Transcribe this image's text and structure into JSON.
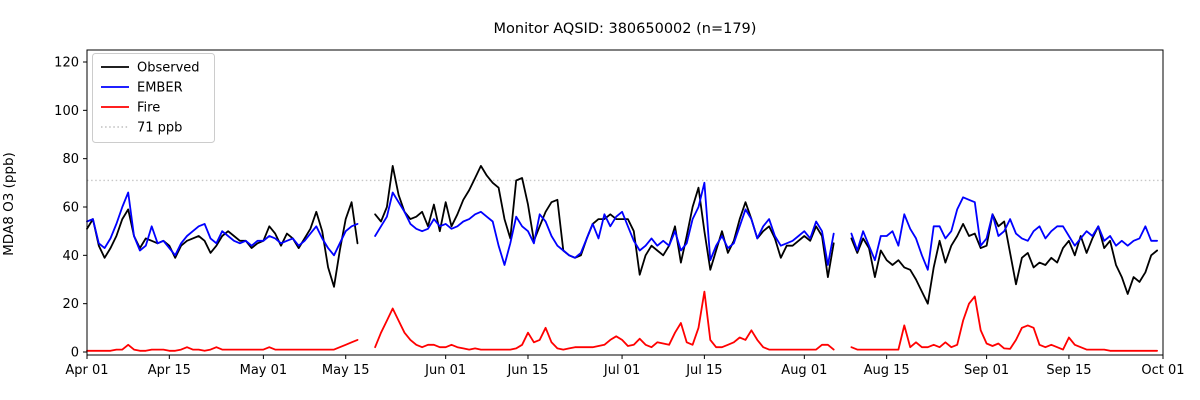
{
  "chart_data": {
    "type": "line",
    "title": "Monitor AQSID: 380650002 (n=179)",
    "ylabel": "MDA8 O3 (ppb)",
    "xlabel": "",
    "ylim": [
      0,
      125
    ],
    "yticks": [
      0,
      20,
      40,
      60,
      80,
      100,
      120
    ],
    "x_unit": "day (daily values, Apr 01 - Sep 30; 4 missing days)",
    "n_days": 183,
    "xticks": [
      {
        "label": "Apr 01",
        "day": 0
      },
      {
        "label": "Apr 15",
        "day": 14
      },
      {
        "label": "May 01",
        "day": 30
      },
      {
        "label": "May 15",
        "day": 44
      },
      {
        "label": "Jun 01",
        "day": 61
      },
      {
        "label": "Jun 15",
        "day": 75
      },
      {
        "label": "Jul 01",
        "day": 91
      },
      {
        "label": "Jul 15",
        "day": 105
      },
      {
        "label": "Aug 01",
        "day": 122
      },
      {
        "label": "Aug 15",
        "day": 136
      },
      {
        "label": "Sep 01",
        "day": 153
      },
      {
        "label": "Sep 15",
        "day": 167
      },
      {
        "label": "Oct 01",
        "day": 183
      }
    ],
    "reference_line": {
      "label": "71 ppb",
      "value": 71,
      "color": "#c8c8c8",
      "style": "dotted"
    },
    "legend": {
      "position": "upper-left",
      "entries": [
        "Observed",
        "EMBER",
        "Fire",
        "71 ppb"
      ]
    },
    "series": [
      {
        "name": "Observed",
        "color": "#000000",
        "style": "solid",
        "values": [
          51,
          55,
          44,
          39,
          43,
          48,
          55,
          59,
          48,
          43,
          47,
          46,
          45,
          46,
          44,
          39,
          44,
          46,
          47,
          48,
          46,
          41,
          44,
          48,
          50,
          48,
          46,
          46,
          43,
          45,
          46,
          52,
          49,
          44,
          49,
          47,
          43,
          47,
          51,
          58,
          50,
          35,
          27,
          42,
          55,
          62,
          45,
          null,
          null,
          57,
          54,
          60,
          77,
          65,
          58,
          55,
          56,
          58,
          52,
          61,
          50,
          62,
          52,
          57,
          63,
          67,
          72,
          77,
          73,
          70,
          68,
          55,
          47,
          71,
          72,
          61,
          46,
          52,
          58,
          62,
          63,
          42,
          40,
          39,
          40,
          47,
          53,
          55,
          55,
          57,
          55,
          55,
          55,
          50,
          32,
          40,
          44,
          42,
          40,
          44,
          52,
          37,
          48,
          60,
          68,
          50,
          34,
          42,
          50,
          41,
          46,
          55,
          62,
          55,
          47,
          50,
          52,
          47,
          39,
          44,
          44,
          46,
          48,
          46,
          52,
          48,
          31,
          45,
          null,
          null,
          47,
          41,
          47,
          43,
          31,
          42,
          38,
          36,
          38,
          35,
          34,
          30,
          25,
          20,
          35,
          46,
          37,
          44,
          48,
          53,
          48,
          49,
          43,
          44,
          57,
          52,
          54,
          41,
          28,
          39,
          41,
          35,
          37,
          36,
          39,
          37,
          43,
          46,
          40,
          48,
          41,
          47,
          52,
          43,
          46,
          36,
          31,
          24,
          31,
          29,
          33,
          40,
          42
        ]
      },
      {
        "name": "EMBER",
        "color": "#0000ff",
        "style": "solid",
        "values": [
          54,
          55,
          45,
          43,
          47,
          53,
          60,
          66,
          48,
          42,
          44,
          52,
          45,
          46,
          43,
          40,
          45,
          48,
          50,
          52,
          53,
          47,
          45,
          50,
          48,
          46,
          45,
          46,
          44,
          46,
          46,
          48,
          47,
          45,
          46,
          47,
          44,
          46,
          49,
          52,
          47,
          43,
          40,
          45,
          50,
          52,
          53,
          null,
          null,
          48,
          52,
          56,
          66,
          62,
          58,
          53,
          51,
          50,
          51,
          55,
          52,
          53,
          51,
          52,
          54,
          55,
          57,
          58,
          56,
          54,
          44,
          36,
          45,
          56,
          52,
          50,
          45,
          57,
          54,
          48,
          44,
          42,
          40,
          39,
          41,
          47,
          53,
          47,
          57,
          52,
          56,
          58,
          52,
          46,
          42,
          44,
          47,
          44,
          46,
          44,
          50,
          42,
          45,
          55,
          60,
          70,
          38,
          44,
          48,
          43,
          45,
          52,
          59,
          55,
          47,
          52,
          55,
          48,
          44,
          45,
          46,
          48,
          50,
          47,
          54,
          50,
          36,
          49,
          null,
          null,
          49,
          42,
          50,
          44,
          38,
          48,
          48,
          50,
          44,
          57,
          51,
          47,
          40,
          34,
          52,
          52,
          47,
          50,
          59,
          64,
          63,
          62,
          44,
          47,
          57,
          48,
          50,
          55,
          49,
          47,
          46,
          50,
          52,
          47,
          50,
          52,
          52,
          48,
          44,
          47,
          50,
          48,
          52,
          46,
          48,
          44,
          46,
          44,
          46,
          47,
          52,
          46,
          46
        ]
      },
      {
        "name": "Fire",
        "color": "#ff0000",
        "style": "solid",
        "values": [
          0.5,
          0.5,
          0.5,
          0.5,
          0.5,
          1,
          1,
          3,
          1,
          0.5,
          0.5,
          1,
          1,
          1,
          0.5,
          0.5,
          1,
          2,
          1,
          1,
          0.5,
          1,
          2,
          1,
          1,
          1,
          1,
          1,
          1,
          1,
          1,
          2,
          1,
          1,
          1,
          1,
          1,
          1,
          1,
          1,
          1,
          1,
          1,
          2,
          3,
          4,
          5,
          null,
          null,
          2,
          8,
          13,
          18,
          13,
          8,
          5,
          3,
          2,
          3,
          3,
          2,
          2,
          3,
          2,
          1.5,
          1,
          1.5,
          1,
          1,
          1,
          1,
          1,
          1,
          1.5,
          3,
          8,
          4,
          5,
          10,
          4,
          1.5,
          1,
          1.5,
          2,
          2,
          2,
          2,
          2.5,
          3,
          5,
          6.5,
          5,
          2.5,
          3,
          5.5,
          3,
          2,
          4,
          3.5,
          3,
          8,
          12,
          4,
          3,
          10,
          25,
          5,
          2,
          2,
          3,
          4,
          6,
          5,
          9,
          5,
          2,
          1,
          1,
          1,
          1,
          1,
          1,
          1,
          1,
          1,
          3,
          3,
          1,
          null,
          null,
          2,
          1,
          1,
          1,
          1,
          1,
          1,
          1,
          1,
          11,
          2,
          4,
          2,
          2,
          3,
          2,
          4,
          2,
          3,
          13,
          20,
          23,
          9,
          3.5,
          2.5,
          3.5,
          1.5,
          1.3,
          5,
          10,
          11,
          10,
          3,
          2,
          3,
          2,
          1,
          6,
          3,
          2,
          1,
          1,
          1,
          1,
          0.5,
          0.5,
          0.5,
          0.5,
          0.5,
          0.5,
          0.5,
          0.5,
          0.5
        ]
      }
    ]
  }
}
